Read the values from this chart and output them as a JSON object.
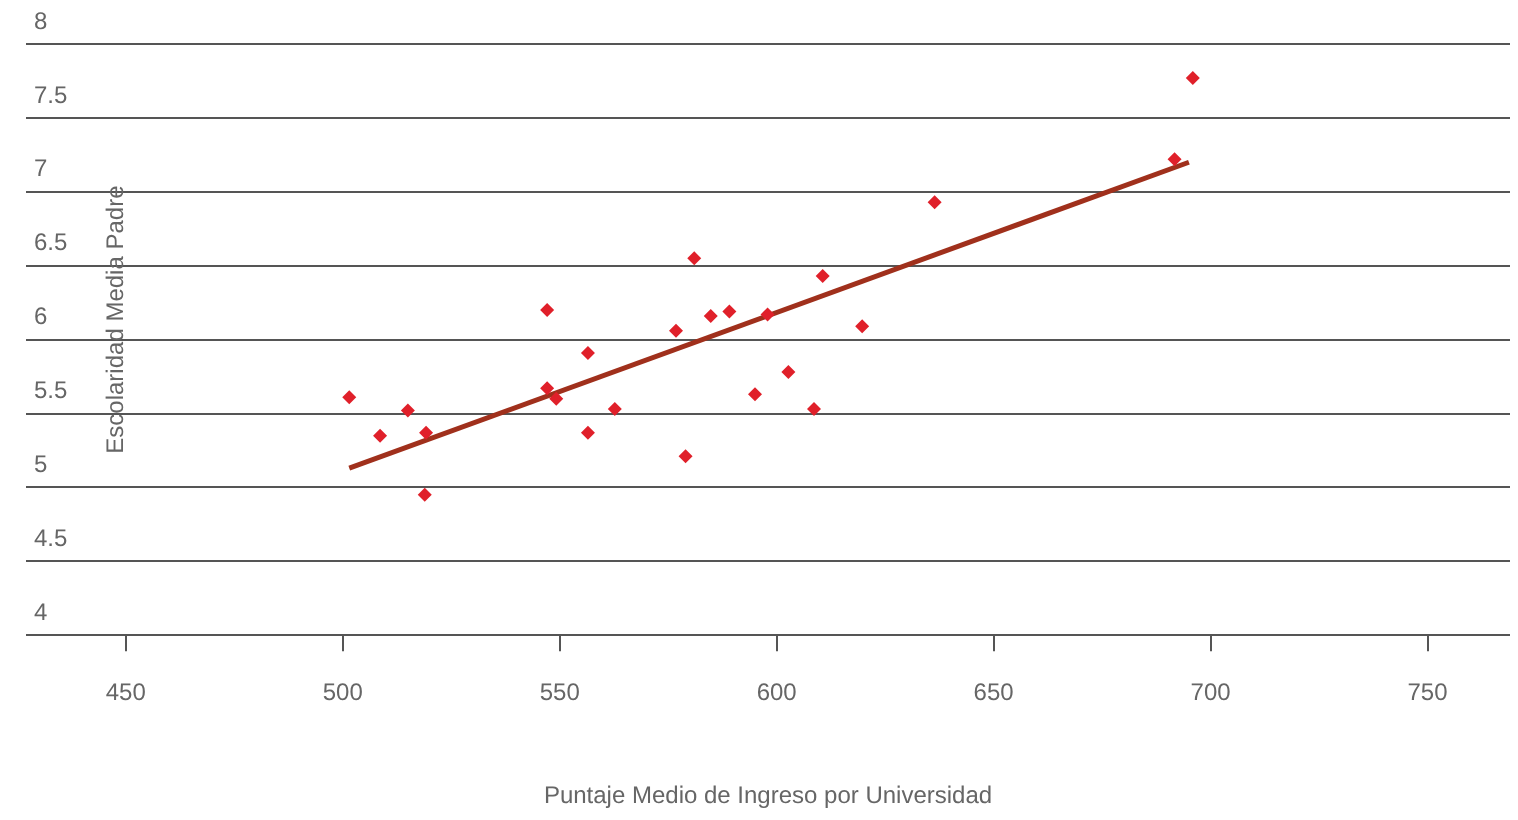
{
  "chart_data": {
    "type": "scatter",
    "xlabel": "Puntaje Medio de Ingreso por Universidad",
    "ylabel": "Escolaridad Media Padre",
    "xlim": [
      427,
      769
    ],
    "xticks": [
      450,
      500,
      550,
      600,
      650,
      700,
      750
    ],
    "ylim": [
      4,
      8
    ],
    "yticks": [
      4,
      4.5,
      5,
      5.5,
      6,
      6.5,
      7,
      7.5,
      8
    ],
    "grid": "y",
    "legend": false,
    "series": [
      {
        "marker": "diamond",
        "color": "#e0202a",
        "x": [
          501.5,
          508.6,
          515,
          519.2,
          518.9,
          547.1,
          547.1,
          549.2,
          556.5,
          556.5,
          562.7,
          581,
          576.8,
          584.8,
          589.1,
          597.9,
          610.6,
          619.7,
          602.7,
          595,
          608.6,
          579,
          636.4,
          695.9,
          691.7
        ],
        "values": [
          5.61,
          5.35,
          5.52,
          5.37,
          4.95,
          6.2,
          5.67,
          5.6,
          5.91,
          5.37,
          5.53,
          6.55,
          6.06,
          6.16,
          6.19,
          6.17,
          6.43,
          6.09,
          5.78,
          5.63,
          5.53,
          5.21,
          6.93,
          7.77,
          7.22
        ]
      },
      {
        "type": "line",
        "color": "#a0301c",
        "x": [
          501.5,
          695
        ],
        "values": [
          5.13,
          7.2
        ]
      }
    ]
  }
}
